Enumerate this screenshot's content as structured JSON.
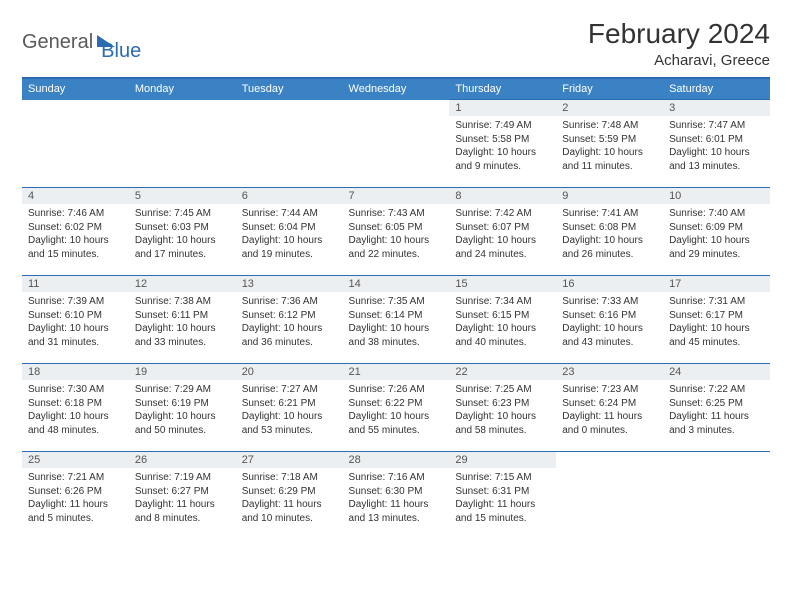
{
  "brand": {
    "general": "General",
    "blue": "Blue"
  },
  "title": {
    "month": "February 2024",
    "location": "Acharavi, Greece"
  },
  "colors": {
    "header_bg": "#3b82c4",
    "border": "#2b6cb0",
    "daynum_bg": "#eceff1",
    "text": "#333333"
  },
  "weekdays": [
    "Sunday",
    "Monday",
    "Tuesday",
    "Wednesday",
    "Thursday",
    "Friday",
    "Saturday"
  ],
  "weeks": [
    [
      null,
      null,
      null,
      null,
      {
        "n": "1",
        "sr": "Sunrise: 7:49 AM",
        "ss": "Sunset: 5:58 PM",
        "dl": "Daylight: 10 hours and 9 minutes."
      },
      {
        "n": "2",
        "sr": "Sunrise: 7:48 AM",
        "ss": "Sunset: 5:59 PM",
        "dl": "Daylight: 10 hours and 11 minutes."
      },
      {
        "n": "3",
        "sr": "Sunrise: 7:47 AM",
        "ss": "Sunset: 6:01 PM",
        "dl": "Daylight: 10 hours and 13 minutes."
      }
    ],
    [
      {
        "n": "4",
        "sr": "Sunrise: 7:46 AM",
        "ss": "Sunset: 6:02 PM",
        "dl": "Daylight: 10 hours and 15 minutes."
      },
      {
        "n": "5",
        "sr": "Sunrise: 7:45 AM",
        "ss": "Sunset: 6:03 PM",
        "dl": "Daylight: 10 hours and 17 minutes."
      },
      {
        "n": "6",
        "sr": "Sunrise: 7:44 AM",
        "ss": "Sunset: 6:04 PM",
        "dl": "Daylight: 10 hours and 19 minutes."
      },
      {
        "n": "7",
        "sr": "Sunrise: 7:43 AM",
        "ss": "Sunset: 6:05 PM",
        "dl": "Daylight: 10 hours and 22 minutes."
      },
      {
        "n": "8",
        "sr": "Sunrise: 7:42 AM",
        "ss": "Sunset: 6:07 PM",
        "dl": "Daylight: 10 hours and 24 minutes."
      },
      {
        "n": "9",
        "sr": "Sunrise: 7:41 AM",
        "ss": "Sunset: 6:08 PM",
        "dl": "Daylight: 10 hours and 26 minutes."
      },
      {
        "n": "10",
        "sr": "Sunrise: 7:40 AM",
        "ss": "Sunset: 6:09 PM",
        "dl": "Daylight: 10 hours and 29 minutes."
      }
    ],
    [
      {
        "n": "11",
        "sr": "Sunrise: 7:39 AM",
        "ss": "Sunset: 6:10 PM",
        "dl": "Daylight: 10 hours and 31 minutes."
      },
      {
        "n": "12",
        "sr": "Sunrise: 7:38 AM",
        "ss": "Sunset: 6:11 PM",
        "dl": "Daylight: 10 hours and 33 minutes."
      },
      {
        "n": "13",
        "sr": "Sunrise: 7:36 AM",
        "ss": "Sunset: 6:12 PM",
        "dl": "Daylight: 10 hours and 36 minutes."
      },
      {
        "n": "14",
        "sr": "Sunrise: 7:35 AM",
        "ss": "Sunset: 6:14 PM",
        "dl": "Daylight: 10 hours and 38 minutes."
      },
      {
        "n": "15",
        "sr": "Sunrise: 7:34 AM",
        "ss": "Sunset: 6:15 PM",
        "dl": "Daylight: 10 hours and 40 minutes."
      },
      {
        "n": "16",
        "sr": "Sunrise: 7:33 AM",
        "ss": "Sunset: 6:16 PM",
        "dl": "Daylight: 10 hours and 43 minutes."
      },
      {
        "n": "17",
        "sr": "Sunrise: 7:31 AM",
        "ss": "Sunset: 6:17 PM",
        "dl": "Daylight: 10 hours and 45 minutes."
      }
    ],
    [
      {
        "n": "18",
        "sr": "Sunrise: 7:30 AM",
        "ss": "Sunset: 6:18 PM",
        "dl": "Daylight: 10 hours and 48 minutes."
      },
      {
        "n": "19",
        "sr": "Sunrise: 7:29 AM",
        "ss": "Sunset: 6:19 PM",
        "dl": "Daylight: 10 hours and 50 minutes."
      },
      {
        "n": "20",
        "sr": "Sunrise: 7:27 AM",
        "ss": "Sunset: 6:21 PM",
        "dl": "Daylight: 10 hours and 53 minutes."
      },
      {
        "n": "21",
        "sr": "Sunrise: 7:26 AM",
        "ss": "Sunset: 6:22 PM",
        "dl": "Daylight: 10 hours and 55 minutes."
      },
      {
        "n": "22",
        "sr": "Sunrise: 7:25 AM",
        "ss": "Sunset: 6:23 PM",
        "dl": "Daylight: 10 hours and 58 minutes."
      },
      {
        "n": "23",
        "sr": "Sunrise: 7:23 AM",
        "ss": "Sunset: 6:24 PM",
        "dl": "Daylight: 11 hours and 0 minutes."
      },
      {
        "n": "24",
        "sr": "Sunrise: 7:22 AM",
        "ss": "Sunset: 6:25 PM",
        "dl": "Daylight: 11 hours and 3 minutes."
      }
    ],
    [
      {
        "n": "25",
        "sr": "Sunrise: 7:21 AM",
        "ss": "Sunset: 6:26 PM",
        "dl": "Daylight: 11 hours and 5 minutes."
      },
      {
        "n": "26",
        "sr": "Sunrise: 7:19 AM",
        "ss": "Sunset: 6:27 PM",
        "dl": "Daylight: 11 hours and 8 minutes."
      },
      {
        "n": "27",
        "sr": "Sunrise: 7:18 AM",
        "ss": "Sunset: 6:29 PM",
        "dl": "Daylight: 11 hours and 10 minutes."
      },
      {
        "n": "28",
        "sr": "Sunrise: 7:16 AM",
        "ss": "Sunset: 6:30 PM",
        "dl": "Daylight: 11 hours and 13 minutes."
      },
      {
        "n": "29",
        "sr": "Sunrise: 7:15 AM",
        "ss": "Sunset: 6:31 PM",
        "dl": "Daylight: 11 hours and 15 minutes."
      },
      null,
      null
    ]
  ]
}
